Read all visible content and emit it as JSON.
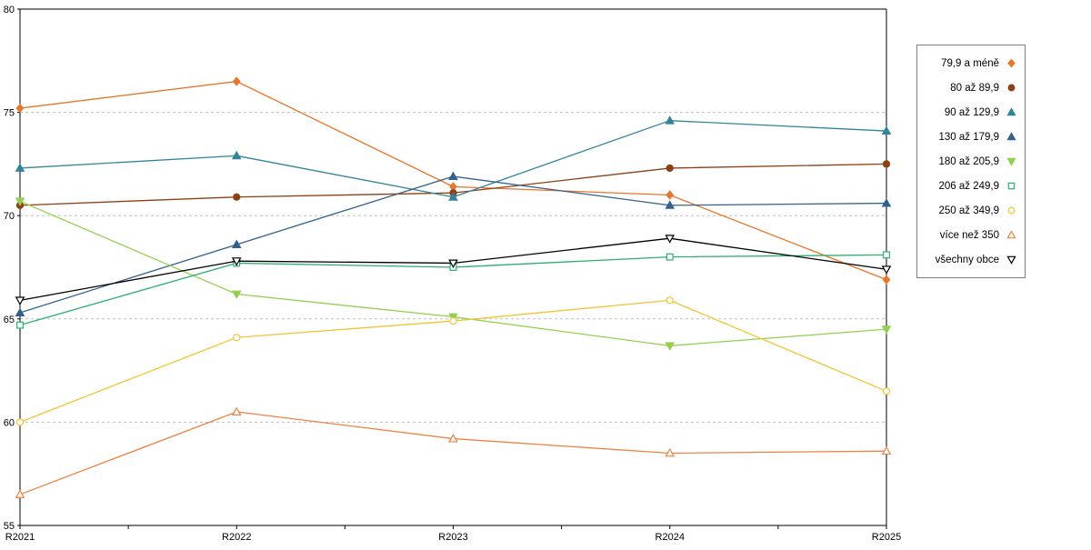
{
  "chart_data": {
    "type": "line",
    "title": "",
    "xlabel": "",
    "ylabel": "",
    "x_categories": [
      "R2021",
      "R2022",
      "R2023",
      "R2024",
      "R2025"
    ],
    "ylim": [
      55,
      80
    ],
    "yticks": [
      55,
      60,
      65,
      70,
      75,
      80
    ],
    "grid": "horizontal-dashed",
    "legend_position": "right-outside",
    "series": [
      {
        "name": "79,9 a méně",
        "color": "#E8762C",
        "marker": "diamond",
        "fill": "solid",
        "values": [
          75.2,
          76.5,
          71.4,
          71.0,
          66.9
        ]
      },
      {
        "name": "80 až 89,9",
        "color": "#8D4014",
        "marker": "circle",
        "fill": "solid",
        "values": [
          70.5,
          70.9,
          71.1,
          72.3,
          72.5
        ]
      },
      {
        "name": "90 až 129,9",
        "color": "#31849B",
        "marker": "triangle-up",
        "fill": "solid",
        "values": [
          72.3,
          72.9,
          70.9,
          74.6,
          74.1
        ]
      },
      {
        "name": "130 až 179,9",
        "color": "#33608C",
        "marker": "triangle-up",
        "fill": "solid",
        "values": [
          65.3,
          68.6,
          71.9,
          70.5,
          70.6
        ]
      },
      {
        "name": "180 až 205,9",
        "color": "#92D050",
        "marker": "triangle-down",
        "fill": "solid",
        "values": [
          70.7,
          66.2,
          65.1,
          63.7,
          64.5
        ]
      },
      {
        "name": "206 až 249,9",
        "color": "#2EAE6E",
        "marker": "square",
        "fill": "open",
        "values": [
          64.7,
          67.7,
          67.5,
          68.0,
          68.1
        ]
      },
      {
        "name": "250 až 349,9",
        "color": "#F2C437",
        "marker": "circle",
        "fill": "open",
        "values": [
          60.0,
          64.1,
          64.9,
          65.9,
          61.5
        ]
      },
      {
        "name": "více než 350",
        "color": "#EF8243",
        "marker": "triangle-up",
        "fill": "open",
        "values": [
          56.5,
          60.5,
          59.2,
          58.5,
          58.6
        ]
      },
      {
        "name": "všechny obce",
        "color": "#000000",
        "marker": "triangle-down",
        "fill": "open",
        "values": [
          65.9,
          67.8,
          67.7,
          68.9,
          67.4
        ]
      }
    ]
  }
}
